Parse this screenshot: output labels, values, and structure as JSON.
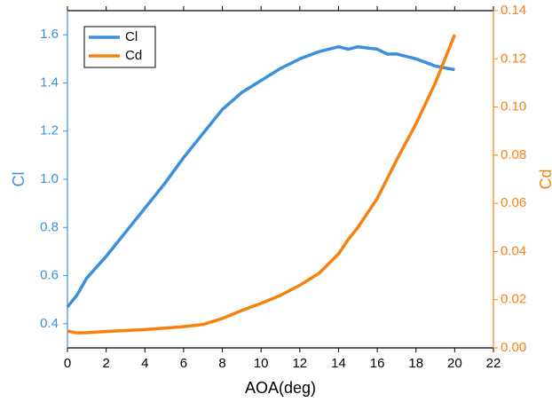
{
  "chart_data": {
    "type": "line",
    "x_label": "AOA(deg)",
    "y_label": "Cl",
    "y2_label": "Cd",
    "x": [
      0,
      0.5,
      1,
      2,
      3,
      4,
      5,
      6,
      7,
      8,
      9,
      10,
      11,
      12,
      13,
      14,
      14.5,
      15,
      16,
      16.5,
      17,
      18,
      19,
      20
    ],
    "series": [
      {
        "name": "Cl",
        "color": "#3b8fdc",
        "axis": "y",
        "values": [
          0.47,
          0.52,
          0.59,
          0.68,
          0.78,
          0.88,
          0.98,
          1.09,
          1.19,
          1.29,
          1.36,
          1.41,
          1.46,
          1.5,
          1.53,
          1.55,
          1.54,
          1.55,
          1.54,
          1.52,
          1.52,
          1.5,
          1.47,
          1.455
        ]
      },
      {
        "name": "Cd",
        "color": "#f5820f",
        "axis": "y2",
        "values": [
          0.007,
          0.0062,
          0.0063,
          0.0068,
          0.0072,
          0.0076,
          0.0082,
          0.0088,
          0.0097,
          0.0122,
          0.0155,
          0.0185,
          0.0218,
          0.026,
          0.031,
          0.039,
          0.045,
          0.05,
          0.062,
          0.07,
          0.078,
          0.093,
          0.11,
          0.13
        ]
      }
    ],
    "xlim": [
      0,
      22
    ],
    "xticks": [
      0,
      2,
      4,
      6,
      8,
      10,
      12,
      14,
      16,
      18,
      20,
      22
    ],
    "ylim": [
      0.3,
      1.7
    ],
    "yticks": [
      0.4,
      0.6,
      0.8,
      {
        "value": 1,
        "label": "1.0"
      },
      1.2,
      1.4,
      1.6
    ],
    "y2lim": [
      0,
      0.14
    ],
    "y2ticks": [
      {
        "value": 0,
        "label": "0.00"
      },
      {
        "value": 0.02,
        "label": "0.02"
      },
      {
        "value": 0.04,
        "label": "0.04"
      },
      {
        "value": 0.06,
        "label": "0.06"
      },
      {
        "value": 0.08,
        "label": "0.08"
      },
      {
        "value": 0.1,
        "label": "0.10"
      },
      {
        "value": 0.12,
        "label": "0.12"
      },
      {
        "value": 0.14,
        "label": "0.14"
      }
    ],
    "legend": "upper-left"
  }
}
